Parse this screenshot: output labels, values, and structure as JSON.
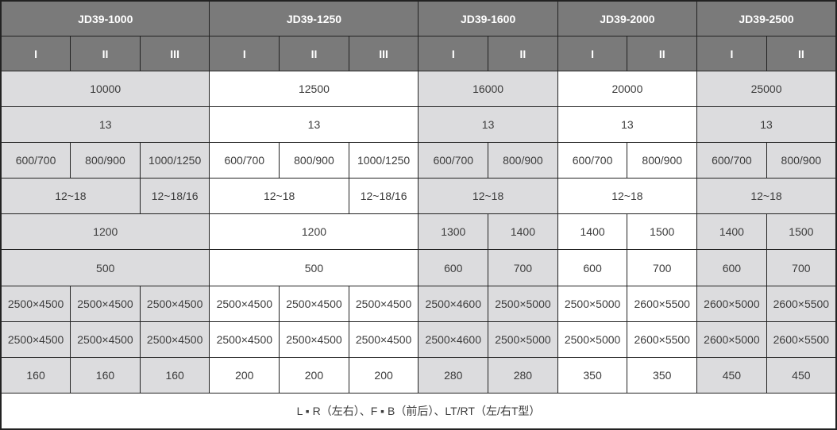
{
  "colors": {
    "header_bg": "#7a7a7a",
    "header_text": "#ffffff",
    "shaded_bg": "#dcdcde",
    "white_bg": "#ffffff",
    "border": "#222222",
    "cell_text": "#3c3c3c"
  },
  "table": {
    "header_groups": [
      {
        "label": "JD39-1000",
        "subcols": [
          "I",
          "II",
          "III"
        ]
      },
      {
        "label": "JD39-1250",
        "subcols": [
          "I",
          "II",
          "III"
        ]
      },
      {
        "label": "JD39-1600",
        "subcols": [
          "I",
          "II"
        ]
      },
      {
        "label": "JD39-2000",
        "subcols": [
          "I",
          "II"
        ]
      },
      {
        "label": "JD39-2500",
        "subcols": [
          "I",
          "II"
        ]
      }
    ],
    "rows": [
      {
        "cells": [
          {
            "text": "10000",
            "colspan": 3,
            "group": 0
          },
          {
            "text": "12500",
            "colspan": 3,
            "group": 1
          },
          {
            "text": "16000",
            "colspan": 2,
            "group": 2
          },
          {
            "text": "20000",
            "colspan": 2,
            "group": 3
          },
          {
            "text": "25000",
            "colspan": 2,
            "group": 4
          }
        ]
      },
      {
        "cells": [
          {
            "text": "13",
            "colspan": 3,
            "group": 0
          },
          {
            "text": "13",
            "colspan": 3,
            "group": 1
          },
          {
            "text": "13",
            "colspan": 2,
            "group": 2
          },
          {
            "text": "13",
            "colspan": 2,
            "group": 3
          },
          {
            "text": "13",
            "colspan": 2,
            "group": 4
          }
        ]
      },
      {
        "cells": [
          {
            "text": "600/700",
            "colspan": 1,
            "group": 0
          },
          {
            "text": "800/900",
            "colspan": 1,
            "group": 0
          },
          {
            "text": "1000/1250",
            "colspan": 1,
            "group": 0
          },
          {
            "text": "600/700",
            "colspan": 1,
            "group": 1
          },
          {
            "text": "800/900",
            "colspan": 1,
            "group": 1
          },
          {
            "text": "1000/1250",
            "colspan": 1,
            "group": 1
          },
          {
            "text": "600/700",
            "colspan": 1,
            "group": 2
          },
          {
            "text": "800/900",
            "colspan": 1,
            "group": 2
          },
          {
            "text": "600/700",
            "colspan": 1,
            "group": 3
          },
          {
            "text": "800/900",
            "colspan": 1,
            "group": 3
          },
          {
            "text": "600/700",
            "colspan": 1,
            "group": 4
          },
          {
            "text": "800/900",
            "colspan": 1,
            "group": 4
          }
        ]
      },
      {
        "cells": [
          {
            "text": "12~18",
            "colspan": 2,
            "group": 0
          },
          {
            "text": "12~18/16",
            "colspan": 1,
            "group": 0
          },
          {
            "text": "12~18",
            "colspan": 2,
            "group": 1
          },
          {
            "text": "12~18/16",
            "colspan": 1,
            "group": 1
          },
          {
            "text": "12~18",
            "colspan": 2,
            "group": 2
          },
          {
            "text": "12~18",
            "colspan": 2,
            "group": 3
          },
          {
            "text": "12~18",
            "colspan": 2,
            "group": 4
          }
        ]
      },
      {
        "cells": [
          {
            "text": "1200",
            "colspan": 3,
            "group": 0
          },
          {
            "text": "1200",
            "colspan": 3,
            "group": 1
          },
          {
            "text": "1300",
            "colspan": 1,
            "group": 2
          },
          {
            "text": "1400",
            "colspan": 1,
            "group": 2
          },
          {
            "text": "1400",
            "colspan": 1,
            "group": 3
          },
          {
            "text": "1500",
            "colspan": 1,
            "group": 3
          },
          {
            "text": "1400",
            "colspan": 1,
            "group": 4
          },
          {
            "text": "1500",
            "colspan": 1,
            "group": 4
          }
        ]
      },
      {
        "cells": [
          {
            "text": "500",
            "colspan": 3,
            "group": 0
          },
          {
            "text": "500",
            "colspan": 3,
            "group": 1
          },
          {
            "text": "600",
            "colspan": 1,
            "group": 2
          },
          {
            "text": "700",
            "colspan": 1,
            "group": 2
          },
          {
            "text": "600",
            "colspan": 1,
            "group": 3
          },
          {
            "text": "700",
            "colspan": 1,
            "group": 3
          },
          {
            "text": "600",
            "colspan": 1,
            "group": 4
          },
          {
            "text": "700",
            "colspan": 1,
            "group": 4
          }
        ]
      },
      {
        "cells": [
          {
            "text": "2500×4500",
            "colspan": 1,
            "group": 0
          },
          {
            "text": "2500×4500",
            "colspan": 1,
            "group": 0
          },
          {
            "text": "2500×4500",
            "colspan": 1,
            "group": 0
          },
          {
            "text": "2500×4500",
            "colspan": 1,
            "group": 1
          },
          {
            "text": "2500×4500",
            "colspan": 1,
            "group": 1
          },
          {
            "text": "2500×4500",
            "colspan": 1,
            "group": 1
          },
          {
            "text": "2500×4600",
            "colspan": 1,
            "group": 2
          },
          {
            "text": "2500×5000",
            "colspan": 1,
            "group": 2
          },
          {
            "text": "2500×5000",
            "colspan": 1,
            "group": 3
          },
          {
            "text": "2600×5500",
            "colspan": 1,
            "group": 3
          },
          {
            "text": "2600×5000",
            "colspan": 1,
            "group": 4
          },
          {
            "text": "2600×5500",
            "colspan": 1,
            "group": 4
          }
        ]
      },
      {
        "cells": [
          {
            "text": "2500×4500",
            "colspan": 1,
            "group": 0
          },
          {
            "text": "2500×4500",
            "colspan": 1,
            "group": 0
          },
          {
            "text": "2500×4500",
            "colspan": 1,
            "group": 0
          },
          {
            "text": "2500×4500",
            "colspan": 1,
            "group": 1
          },
          {
            "text": "2500×4500",
            "colspan": 1,
            "group": 1
          },
          {
            "text": "2500×4500",
            "colspan": 1,
            "group": 1
          },
          {
            "text": "2500×4600",
            "colspan": 1,
            "group": 2
          },
          {
            "text": "2500×5000",
            "colspan": 1,
            "group": 2
          },
          {
            "text": "2500×5000",
            "colspan": 1,
            "group": 3
          },
          {
            "text": "2600×5500",
            "colspan": 1,
            "group": 3
          },
          {
            "text": "2600×5000",
            "colspan": 1,
            "group": 4
          },
          {
            "text": "2600×5500",
            "colspan": 1,
            "group": 4
          }
        ]
      },
      {
        "cells": [
          {
            "text": "160",
            "colspan": 1,
            "group": 0
          },
          {
            "text": "160",
            "colspan": 1,
            "group": 0
          },
          {
            "text": "160",
            "colspan": 1,
            "group": 0
          },
          {
            "text": "200",
            "colspan": 1,
            "group": 1
          },
          {
            "text": "200",
            "colspan": 1,
            "group": 1
          },
          {
            "text": "200",
            "colspan": 1,
            "group": 1
          },
          {
            "text": "280",
            "colspan": 1,
            "group": 2
          },
          {
            "text": "280",
            "colspan": 1,
            "group": 2
          },
          {
            "text": "350",
            "colspan": 1,
            "group": 3
          },
          {
            "text": "350",
            "colspan": 1,
            "group": 3
          },
          {
            "text": "450",
            "colspan": 1,
            "group": 4
          },
          {
            "text": "450",
            "colspan": 1,
            "group": 4
          }
        ]
      },
      {
        "footer": true,
        "cells": [
          {
            "text": "L ▪ R（左右）、F ▪ B（前后）、LT/RT（左/右T型）",
            "colspan": 12,
            "group": -1
          }
        ]
      }
    ]
  }
}
